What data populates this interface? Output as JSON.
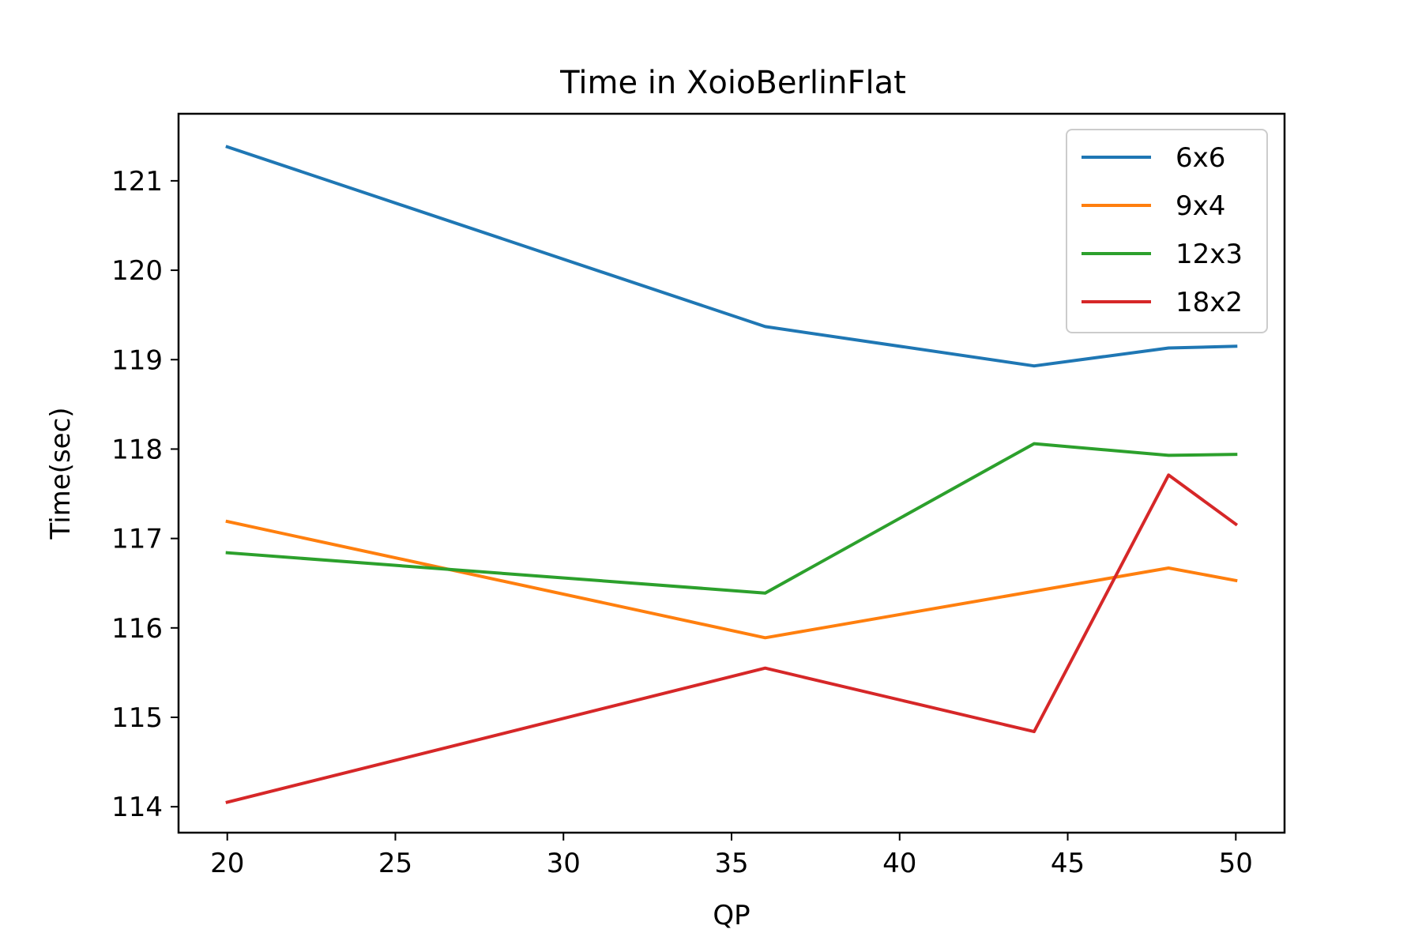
{
  "chart_data": {
    "type": "line",
    "title": "Time in XoioBerlinFlat",
    "xlabel": "QP",
    "ylabel": "Time(sec)",
    "x": [
      20,
      36,
      44,
      48,
      50
    ],
    "xlim": [
      18.55,
      51.45
    ],
    "ylim": [
      113.71,
      121.75
    ],
    "xticks": [
      20,
      25,
      30,
      35,
      40,
      45,
      50
    ],
    "yticks": [
      114,
      115,
      116,
      117,
      118,
      119,
      120,
      121
    ],
    "grid": false,
    "legend_position": "top-right",
    "series": [
      {
        "name": "6x6",
        "color": "#1f77b4",
        "values": [
          121.38,
          119.37,
          118.93,
          119.13,
          119.15
        ]
      },
      {
        "name": "9x4",
        "color": "#ff7f0e",
        "values": [
          117.19,
          115.89,
          null,
          116.67,
          116.53
        ]
      },
      {
        "name": "12x3",
        "color": "#2ca02c",
        "values": [
          116.84,
          116.39,
          118.06,
          117.93,
          117.94
        ]
      },
      {
        "name": "18x2",
        "color": "#d62728",
        "values": [
          114.05,
          115.55,
          114.84,
          117.71,
          117.16
        ]
      }
    ]
  }
}
